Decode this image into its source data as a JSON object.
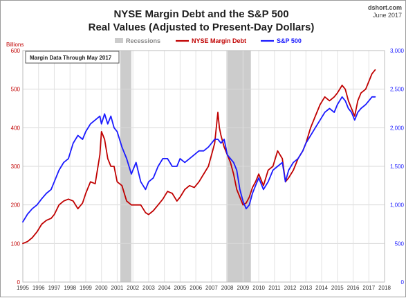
{
  "source": {
    "site": "dshort.com",
    "date": "June 2017"
  },
  "chart_data": {
    "type": "line",
    "title": "NYSE Margin Debt and the S&P 500",
    "subtitle": "Real Values (Adjusted to Present-Day Dollars)",
    "left_axis_label": "Billions",
    "annotation": "Margin Data Through May 2017",
    "legend_placement": "top-center",
    "grid": true,
    "x_range": [
      1995,
      2018
    ],
    "x_ticks": [
      1995,
      1996,
      1997,
      1998,
      1999,
      2000,
      2001,
      2002,
      2003,
      2004,
      2005,
      2006,
      2007,
      2008,
      2009,
      2010,
      2011,
      2012,
      2013,
      2014,
      2015,
      2016,
      2017,
      2018
    ],
    "left_ylim": [
      0,
      600
    ],
    "left_ticks": [
      0,
      100,
      200,
      300,
      400,
      500,
      600
    ],
    "right_ylim": [
      0,
      3000
    ],
    "right_ticks": [
      "0",
      "500",
      "1,000",
      "1,500",
      "2,000",
      "2,500",
      "3,000"
    ],
    "recessions": {
      "label": "Recessions",
      "color": "#cccccc",
      "periods": [
        [
          2001.2,
          2001.9
        ],
        [
          2007.95,
          2009.5
        ]
      ]
    },
    "series": [
      {
        "name": "NYSE Margin Debt",
        "axis": "left",
        "color": "#c00000",
        "x": [
          1995.0,
          1995.3,
          1995.6,
          1995.9,
          1996.2,
          1996.5,
          1996.8,
          1997.0,
          1997.3,
          1997.6,
          1997.9,
          1998.2,
          1998.5,
          1998.8,
          1999.0,
          1999.3,
          1999.6,
          1999.9,
          2000.0,
          2000.2,
          2000.4,
          2000.6,
          2000.8,
          2001.0,
          2001.3,
          2001.6,
          2001.9,
          2002.2,
          2002.5,
          2002.8,
          2003.0,
          2003.3,
          2003.6,
          2003.9,
          2004.2,
          2004.5,
          2004.8,
          2005.0,
          2005.3,
          2005.6,
          2005.9,
          2006.2,
          2006.5,
          2006.8,
          2007.0,
          2007.2,
          2007.4,
          2007.5,
          2007.6,
          2007.8,
          2008.0,
          2008.2,
          2008.4,
          2008.6,
          2008.8,
          2009.0,
          2009.2,
          2009.4,
          2009.6,
          2009.8,
          2010.0,
          2010.3,
          2010.6,
          2010.9,
          2011.2,
          2011.5,
          2011.7,
          2011.9,
          2012.2,
          2012.5,
          2012.8,
          2013.0,
          2013.3,
          2013.6,
          2013.9,
          2014.2,
          2014.5,
          2014.8,
          2015.0,
          2015.3,
          2015.5,
          2015.7,
          2015.9,
          2016.1,
          2016.3,
          2016.5,
          2016.8,
          2017.0,
          2017.2,
          2017.4
        ],
        "values": [
          100,
          105,
          115,
          130,
          150,
          160,
          165,
          175,
          200,
          210,
          215,
          210,
          190,
          205,
          230,
          260,
          255,
          330,
          390,
          370,
          320,
          300,
          300,
          260,
          250,
          210,
          200,
          200,
          200,
          180,
          175,
          185,
          200,
          215,
          235,
          230,
          210,
          220,
          240,
          250,
          245,
          260,
          280,
          300,
          330,
          360,
          440,
          400,
          380,
          350,
          330,
          310,
          280,
          240,
          220,
          200,
          205,
          220,
          245,
          260,
          280,
          250,
          290,
          300,
          340,
          320,
          260,
          270,
          290,
          320,
          340,
          360,
          400,
          430,
          460,
          480,
          470,
          480,
          490,
          510,
          500,
          470,
          450,
          430,
          470,
          490,
          500,
          520,
          540,
          550
        ]
      },
      {
        "name": "S&P 500",
        "axis": "right",
        "color": "#1a1aff",
        "x": [
          1995.0,
          1995.3,
          1995.6,
          1995.9,
          1996.2,
          1996.5,
          1996.8,
          1997.0,
          1997.3,
          1997.6,
          1997.9,
          1998.2,
          1998.5,
          1998.8,
          1999.0,
          1999.3,
          1999.6,
          1999.9,
          2000.0,
          2000.2,
          2000.4,
          2000.6,
          2000.8,
          2001.0,
          2001.3,
          2001.6,
          2001.9,
          2002.2,
          2002.5,
          2002.8,
          2003.0,
          2003.3,
          2003.6,
          2003.9,
          2004.2,
          2004.5,
          2004.8,
          2005.0,
          2005.3,
          2005.6,
          2005.9,
          2006.2,
          2006.5,
          2006.8,
          2007.0,
          2007.2,
          2007.4,
          2007.6,
          2007.8,
          2008.0,
          2008.2,
          2008.4,
          2008.6,
          2008.8,
          2009.0,
          2009.2,
          2009.4,
          2009.6,
          2009.8,
          2010.0,
          2010.3,
          2010.6,
          2010.9,
          2011.2,
          2011.5,
          2011.7,
          2011.9,
          2012.2,
          2012.5,
          2012.8,
          2013.0,
          2013.3,
          2013.6,
          2013.9,
          2014.2,
          2014.5,
          2014.8,
          2015.0,
          2015.3,
          2015.5,
          2015.7,
          2015.9,
          2016.1,
          2016.3,
          2016.5,
          2016.8,
          2017.0,
          2017.2,
          2017.4
        ],
        "values": [
          780,
          880,
          950,
          1000,
          1080,
          1150,
          1200,
          1300,
          1450,
          1550,
          1600,
          1800,
          1900,
          1850,
          1950,
          2050,
          2100,
          2150,
          2050,
          2180,
          2050,
          2150,
          2000,
          1950,
          1750,
          1600,
          1400,
          1550,
          1300,
          1200,
          1300,
          1350,
          1500,
          1600,
          1600,
          1500,
          1500,
          1600,
          1550,
          1600,
          1650,
          1700,
          1700,
          1750,
          1800,
          1850,
          1850,
          1800,
          1850,
          1650,
          1600,
          1550,
          1450,
          1200,
          1050,
          950,
          1000,
          1150,
          1250,
          1350,
          1200,
          1300,
          1450,
          1500,
          1550,
          1300,
          1450,
          1550,
          1600,
          1700,
          1800,
          1900,
          2000,
          2100,
          2200,
          2250,
          2200,
          2300,
          2400,
          2350,
          2250,
          2200,
          2100,
          2200,
          2250,
          2300,
          2350,
          2400,
          2400
        ]
      }
    ]
  }
}
